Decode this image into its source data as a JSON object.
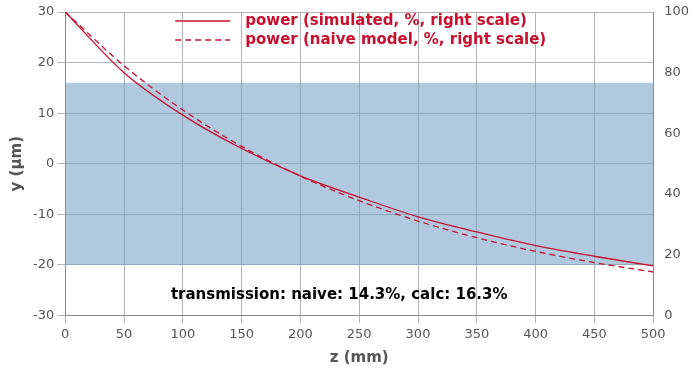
{
  "chart_data": {
    "type": "line",
    "x_label": "z (mm)",
    "y_label": "y (µm)",
    "xlim": [
      0,
      500
    ],
    "xticks": [
      0,
      50,
      100,
      150,
      200,
      250,
      300,
      350,
      400,
      450,
      500
    ],
    "ylim": [
      -30,
      30
    ],
    "yticks": [
      -30,
      -20,
      -10,
      0,
      10,
      20,
      30
    ],
    "y2lim": [
      0,
      100
    ],
    "y2ticks": [
      0,
      20,
      40,
      60,
      80,
      100
    ],
    "grid": true,
    "legend": "top",
    "field": {
      "z": [
        0,
        500
      ],
      "y": [
        -20,
        16
      ],
      "color": "#6f9cc4"
    },
    "annotation": "transmission: naive: 14.3%, calc: 16.3%",
    "series": [
      {
        "name": "power (simulated, %, right scale)",
        "color": "#c8102e",
        "line_style": "solid",
        "axis": "y2",
        "x": [
          0,
          50,
          100,
          150,
          200,
          250,
          300,
          350,
          400,
          450,
          500
        ],
        "values": [
          100,
          80,
          66,
          55,
          46,
          39,
          32.5,
          27.5,
          23,
          19.5,
          16.3
        ]
      },
      {
        "name": "power (naive model, %, right scale)",
        "color": "#c8102e",
        "line_style": "dashed",
        "axis": "y2",
        "x": [
          0,
          50,
          100,
          150,
          200,
          250,
          300,
          350,
          400,
          450,
          500
        ],
        "values": [
          100,
          82.3,
          67.7,
          55.7,
          45.9,
          37.8,
          31.1,
          25.6,
          21.1,
          17.4,
          14.3
        ]
      }
    ]
  }
}
